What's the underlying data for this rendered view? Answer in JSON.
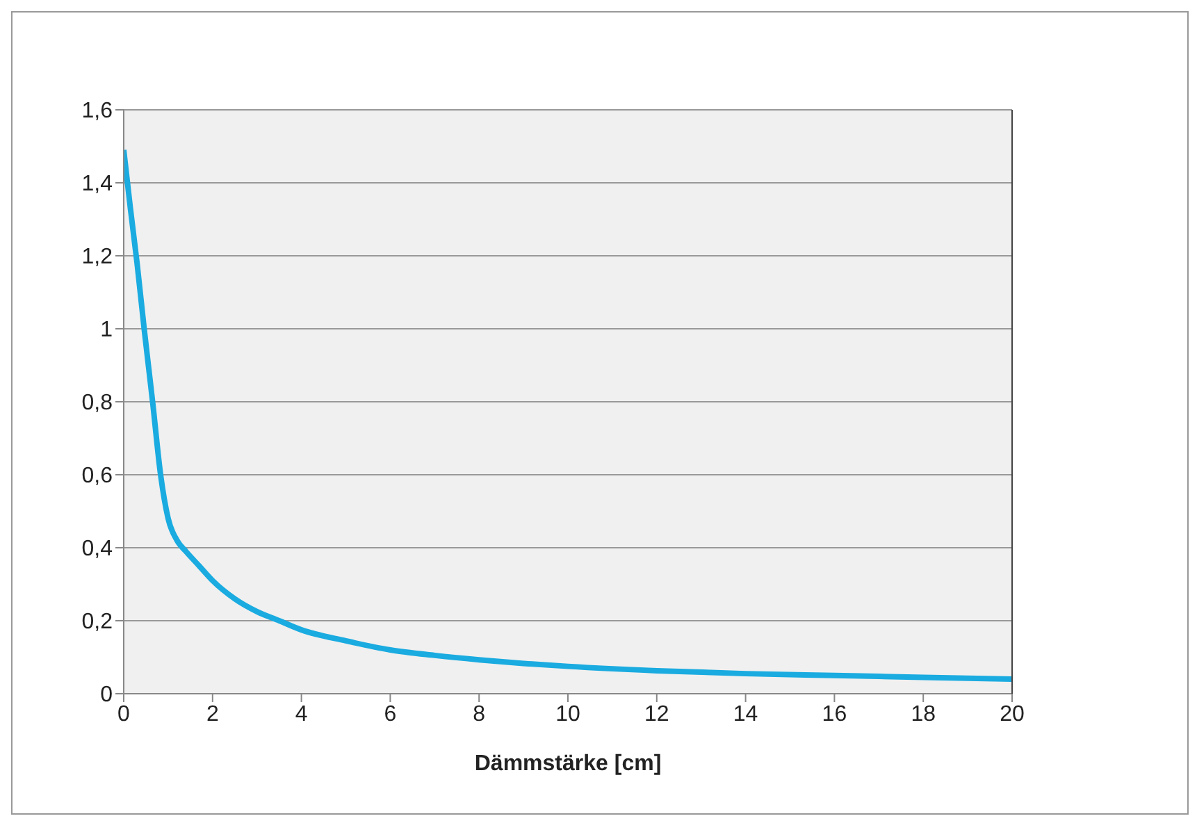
{
  "chart_data": {
    "type": "line",
    "xlabel": "Dämmstärke [cm]",
    "series": [
      {
        "color": "#1aabe0",
        "x": [
          0,
          0.15,
          0.3,
          0.46,
          0.65,
          0.83,
          1,
          1.2,
          1.4,
          1.7,
          2,
          2.5,
          3,
          3.5,
          4,
          5,
          6,
          7,
          8,
          9,
          10,
          12,
          14,
          16,
          18,
          20
        ],
        "values": [
          1.49,
          1.33,
          1.18,
          1.0,
          0.8,
          0.6,
          0.48,
          0.42,
          0.39,
          0.35,
          0.31,
          0.26,
          0.225,
          0.2,
          0.175,
          0.145,
          0.12,
          0.105,
          0.093,
          0.083,
          0.075,
          0.063,
          0.055,
          0.05,
          0.045,
          0.04
        ]
      }
    ],
    "xlim": [
      0,
      20
    ],
    "xticks": [
      0,
      2,
      4,
      6,
      8,
      10,
      12,
      14,
      16,
      18,
      20
    ],
    "ylim": [
      0,
      1.6
    ],
    "yticks": [
      0,
      {
        "value": 0.2,
        "label": "0,2"
      },
      {
        "value": 0.4,
        "label": "0,4"
      },
      {
        "value": 0.6,
        "label": "0,6"
      },
      {
        "value": 0.8,
        "label": "0,8"
      },
      1,
      {
        "value": 1.2,
        "label": "1,2"
      },
      {
        "value": 1.4,
        "label": "1,4"
      },
      {
        "value": 1.6,
        "label": "1,6"
      }
    ],
    "grid": "y",
    "marker": "none",
    "line_style": "solid"
  }
}
